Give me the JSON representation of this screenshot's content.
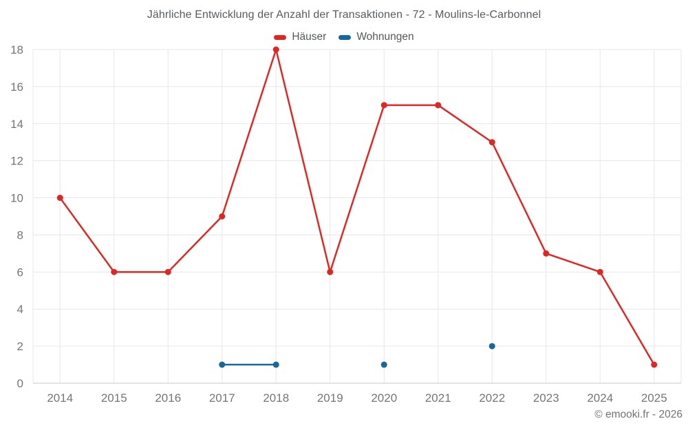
{
  "page": {
    "credit": "© emooki.fr - 2026"
  },
  "colors": {
    "hauser": "#e02622",
    "wohnungen": "#16689a",
    "grid": "#e7e7e7",
    "axis_line": "#c9c9c9",
    "tick_label": "#757575",
    "title_text": "#565b61",
    "legend_text": "#53575c",
    "footer_text": "#6e7276",
    "background": "#ffffff"
  },
  "chart_data": {
    "type": "line",
    "title": "Jährliche Entwicklung der Anzahl der Transaktionen - 72 - Moulins-le-Carbonnel",
    "x": [
      "2014",
      "2015",
      "2016",
      "2017",
      "2018",
      "2019",
      "2020",
      "2021",
      "2022",
      "2023",
      "2024",
      "2025"
    ],
    "series": [
      {
        "name": "Häuser",
        "color": "#e02622",
        "values": [
          10,
          6,
          6,
          9,
          18,
          6,
          15,
          15,
          13,
          7,
          6,
          1
        ]
      },
      {
        "name": "Wohnungen",
        "color": "#16689a",
        "values": [
          null,
          null,
          null,
          1,
          1,
          null,
          1,
          null,
          2,
          null,
          null,
          null
        ]
      }
    ],
    "xlabel": "",
    "ylabel": "",
    "ylim": [
      0,
      18
    ],
    "yticks": [
      0,
      2,
      4,
      6,
      8,
      10,
      12,
      14,
      16,
      18
    ],
    "grid": true,
    "legend_position": "top"
  }
}
